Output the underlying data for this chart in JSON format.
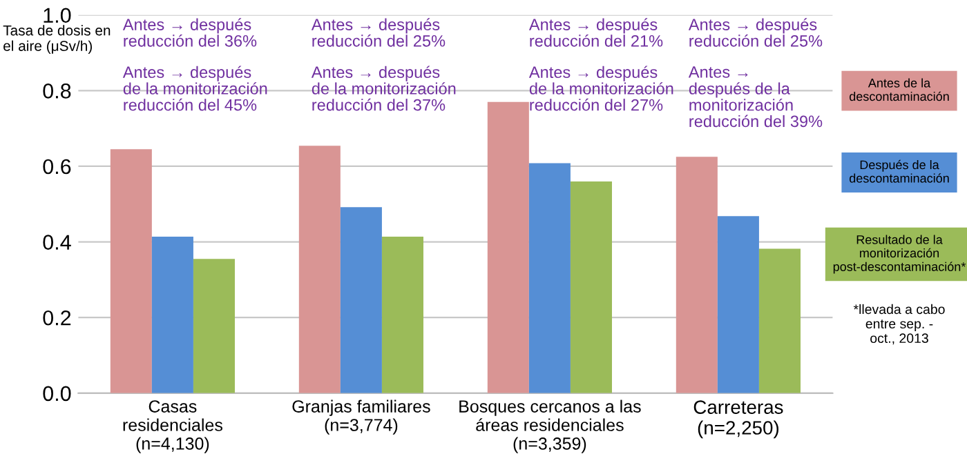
{
  "chart_data": {
    "type": "bar",
    "ylabel": "Tasa de dosis en\nel aire (μSv/h)",
    "categories": [
      "Casas\nresidenciales\n(n=4,130)",
      "Granjas familiares\n(n=3,774)",
      "Bosques cercanos a las\náreas residenciales\n(n=3,359)",
      "Carreteras\n(n=2,250)"
    ],
    "series": [
      {
        "name": "Antes de la\ndescontaminación",
        "color": "#d99594",
        "values": [
          0.645,
          0.654,
          0.77,
          0.625
        ]
      },
      {
        "name": "Después de la\ndescontaminación",
        "color": "#558ed5",
        "values": [
          0.414,
          0.492,
          0.608,
          0.468
        ]
      },
      {
        "name": "Resultado de la\nmonitorización\npost-descontaminación*",
        "color": "#9bbb59",
        "values": [
          0.355,
          0.414,
          0.56,
          0.382
        ]
      }
    ],
    "ylim": [
      0,
      1.0
    ],
    "yticks": [
      "0.0",
      0.2,
      0.4,
      0.6,
      0.8,
      "1.0"
    ],
    "grid": "y",
    "legend": "right",
    "annotations": [
      "Antes → después\nreducción del 36%",
      "Antes → después\nde la monitorización\nreducción del 45%",
      "Antes → después\nreducción del 25%",
      "Antes → después\nde la monitorización\nreducción del 37%",
      "Antes → después\nreducción del 21%",
      "Antes → después\nde la monitorización\nreducción del 27%",
      "Antes → después\nreducción del 25%",
      "Antes →\ndespués de la\nmonitorización\nreducción del 39%",
      "*llevada a cabo\nentre sep. -\noct., 2013"
    ]
  }
}
